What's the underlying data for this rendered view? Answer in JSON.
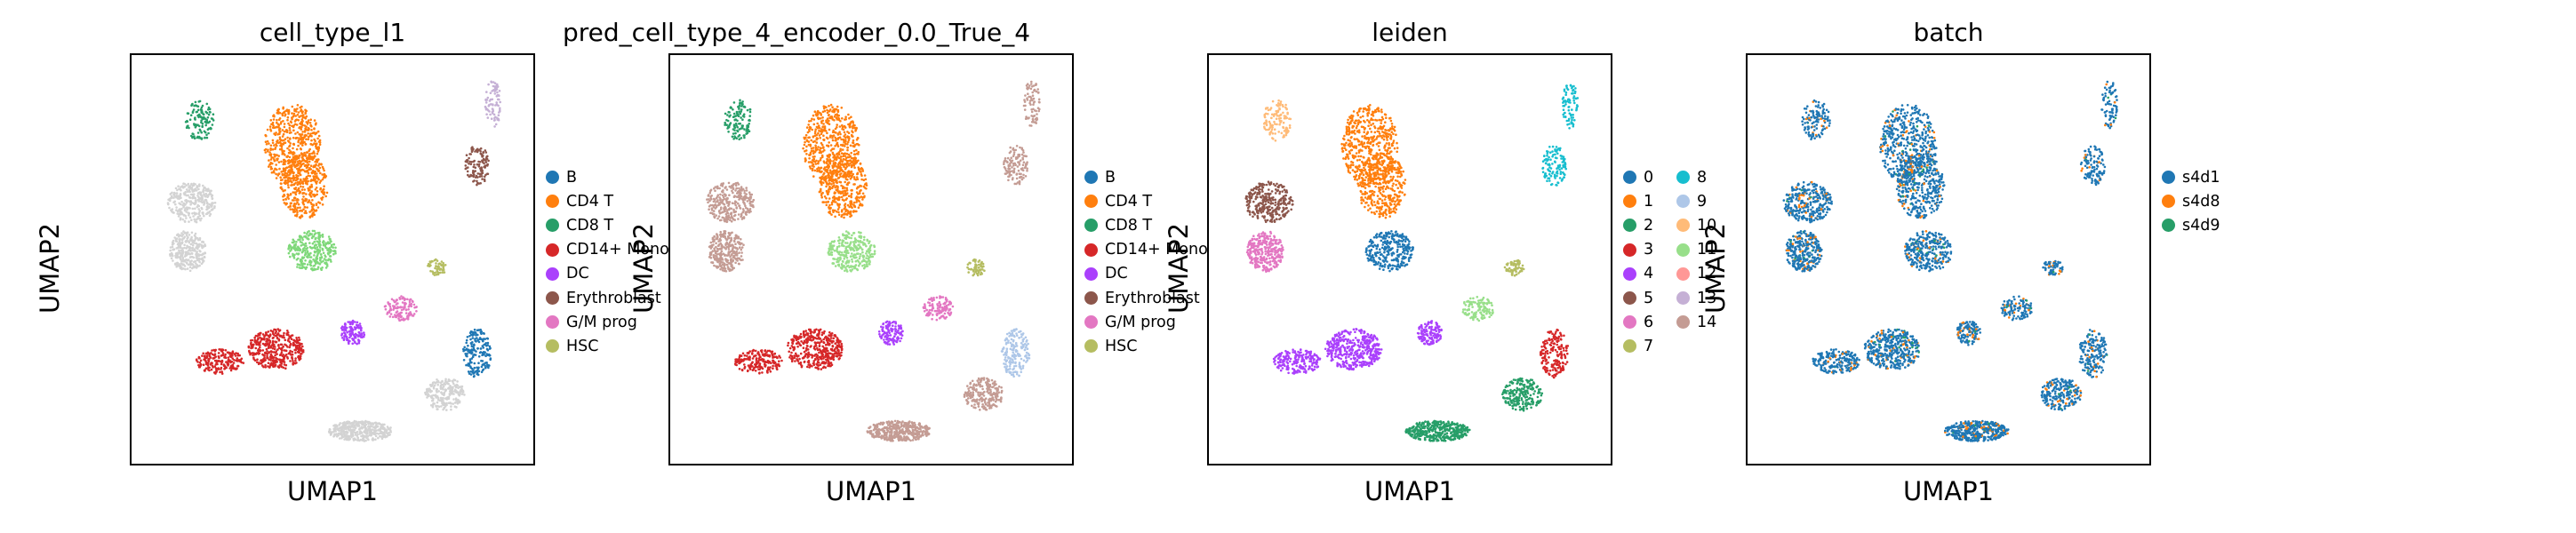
{
  "chart_data": [
    {
      "type": "scatter",
      "title": "cell_type_l1",
      "xlabel": "UMAP1",
      "ylabel": "UMAP2",
      "legend_position": "right",
      "legend": [
        {
          "label": "B",
          "color": "#1f77b4"
        },
        {
          "label": "CD4 T",
          "color": "#ff7f0e"
        },
        {
          "label": "CD8 T",
          "color": "#279e68"
        },
        {
          "label": "CD14+ Mono",
          "color": "#d62728"
        },
        {
          "label": "DC",
          "color": "#aa40fc"
        },
        {
          "label": "Erythroblast",
          "color": "#8c564b"
        },
        {
          "label": "G/M prog",
          "color": "#e377c2"
        },
        {
          "label": "HSC",
          "color": "#b5bd61"
        }
      ],
      "clusters": [
        {
          "legend": "CD8 T",
          "cx": 0.17,
          "cy": 0.84,
          "r": 0.035
        },
        {
          "legend": "CD4 T",
          "cx": 0.4,
          "cy": 0.79,
          "r": 0.07
        },
        {
          "legend": "CD4 T",
          "cx": 0.43,
          "cy": 0.7,
          "r": 0.06
        },
        {
          "legend": "CD8 T",
          "cx": 0.45,
          "cy": 0.52,
          "r": 0.06
        },
        {
          "legend": null,
          "cx": 0.16,
          "cy": 0.64,
          "r": 0.06
        },
        {
          "legend": null,
          "cx": 0.15,
          "cy": 0.55,
          "r": 0.05
        },
        {
          "legend": "CD14+ Mono",
          "cx": 0.35,
          "cy": 0.3,
          "r": 0.07
        },
        {
          "legend": "CD14+ Mono",
          "cx": 0.22,
          "cy": 0.25,
          "r": 0.05
        },
        {
          "legend": "DC",
          "cx": 0.55,
          "cy": 0.32,
          "r": 0.03
        },
        {
          "legend": "G/M prog",
          "cx": 0.67,
          "cy": 0.38,
          "r": 0.04
        },
        {
          "legend": "HSC",
          "cx": 0.76,
          "cy": 0.48,
          "r": 0.025
        },
        {
          "legend": "Erythroblast",
          "cx": 0.87,
          "cy": 0.74,
          "r": 0.03
        },
        {
          "legend": "B",
          "cx": 0.86,
          "cy": 0.26,
          "r": 0.04
        },
        {
          "legend": null,
          "cx": 0.57,
          "cy": 0.09,
          "r": 0.08
        },
        {
          "legend": null,
          "cx": 0.78,
          "cy": 0.18,
          "r": 0.05
        }
      ]
    },
    {
      "type": "scatter",
      "title": "pred_cell_type_4_encoder_0.0_True_4",
      "xlabel": "UMAP1",
      "ylabel": "UMAP2",
      "legend_position": "right",
      "legend": [
        {
          "label": "B",
          "color": "#1f77b4"
        },
        {
          "label": "CD4 T",
          "color": "#ff7f0e"
        },
        {
          "label": "CD8 T",
          "color": "#279e68"
        },
        {
          "label": "CD14+ Mono",
          "color": "#d62728"
        },
        {
          "label": "DC",
          "color": "#aa40fc"
        },
        {
          "label": "Erythroblast",
          "color": "#8c564b"
        },
        {
          "label": "G/M prog",
          "color": "#e377c2"
        },
        {
          "label": "HSC",
          "color": "#b5bd61"
        }
      ]
    },
    {
      "type": "scatter",
      "title": "leiden",
      "xlabel": "UMAP1",
      "ylabel": "UMAP2",
      "legend_position": "right",
      "legend": [
        {
          "label": "0",
          "color": "#1f77b4"
        },
        {
          "label": "1",
          "color": "#ff7f0e"
        },
        {
          "label": "2",
          "color": "#279e68"
        },
        {
          "label": "3",
          "color": "#d62728"
        },
        {
          "label": "4",
          "color": "#aa40fc"
        },
        {
          "label": "5",
          "color": "#8c564b"
        },
        {
          "label": "6",
          "color": "#e377c2"
        },
        {
          "label": "7",
          "color": "#b5bd61"
        },
        {
          "label": "8",
          "color": "#17becf"
        },
        {
          "label": "9",
          "color": "#aec7e8"
        },
        {
          "label": "10",
          "color": "#ffbb78"
        },
        {
          "label": "11",
          "color": "#98df8a"
        },
        {
          "label": "12",
          "color": "#ff9896"
        },
        {
          "label": "13",
          "color": "#c5b0d5"
        },
        {
          "label": "14",
          "color": "#c49c94"
        }
      ]
    },
    {
      "type": "scatter",
      "title": "batch",
      "xlabel": "UMAP1",
      "ylabel": "UMAP2",
      "legend_position": "right",
      "legend": [
        {
          "label": "s4d1",
          "color": "#1f77b4"
        },
        {
          "label": "s4d8",
          "color": "#ff7f0e"
        },
        {
          "label": "s4d9",
          "color": "#279e68"
        }
      ]
    }
  ]
}
